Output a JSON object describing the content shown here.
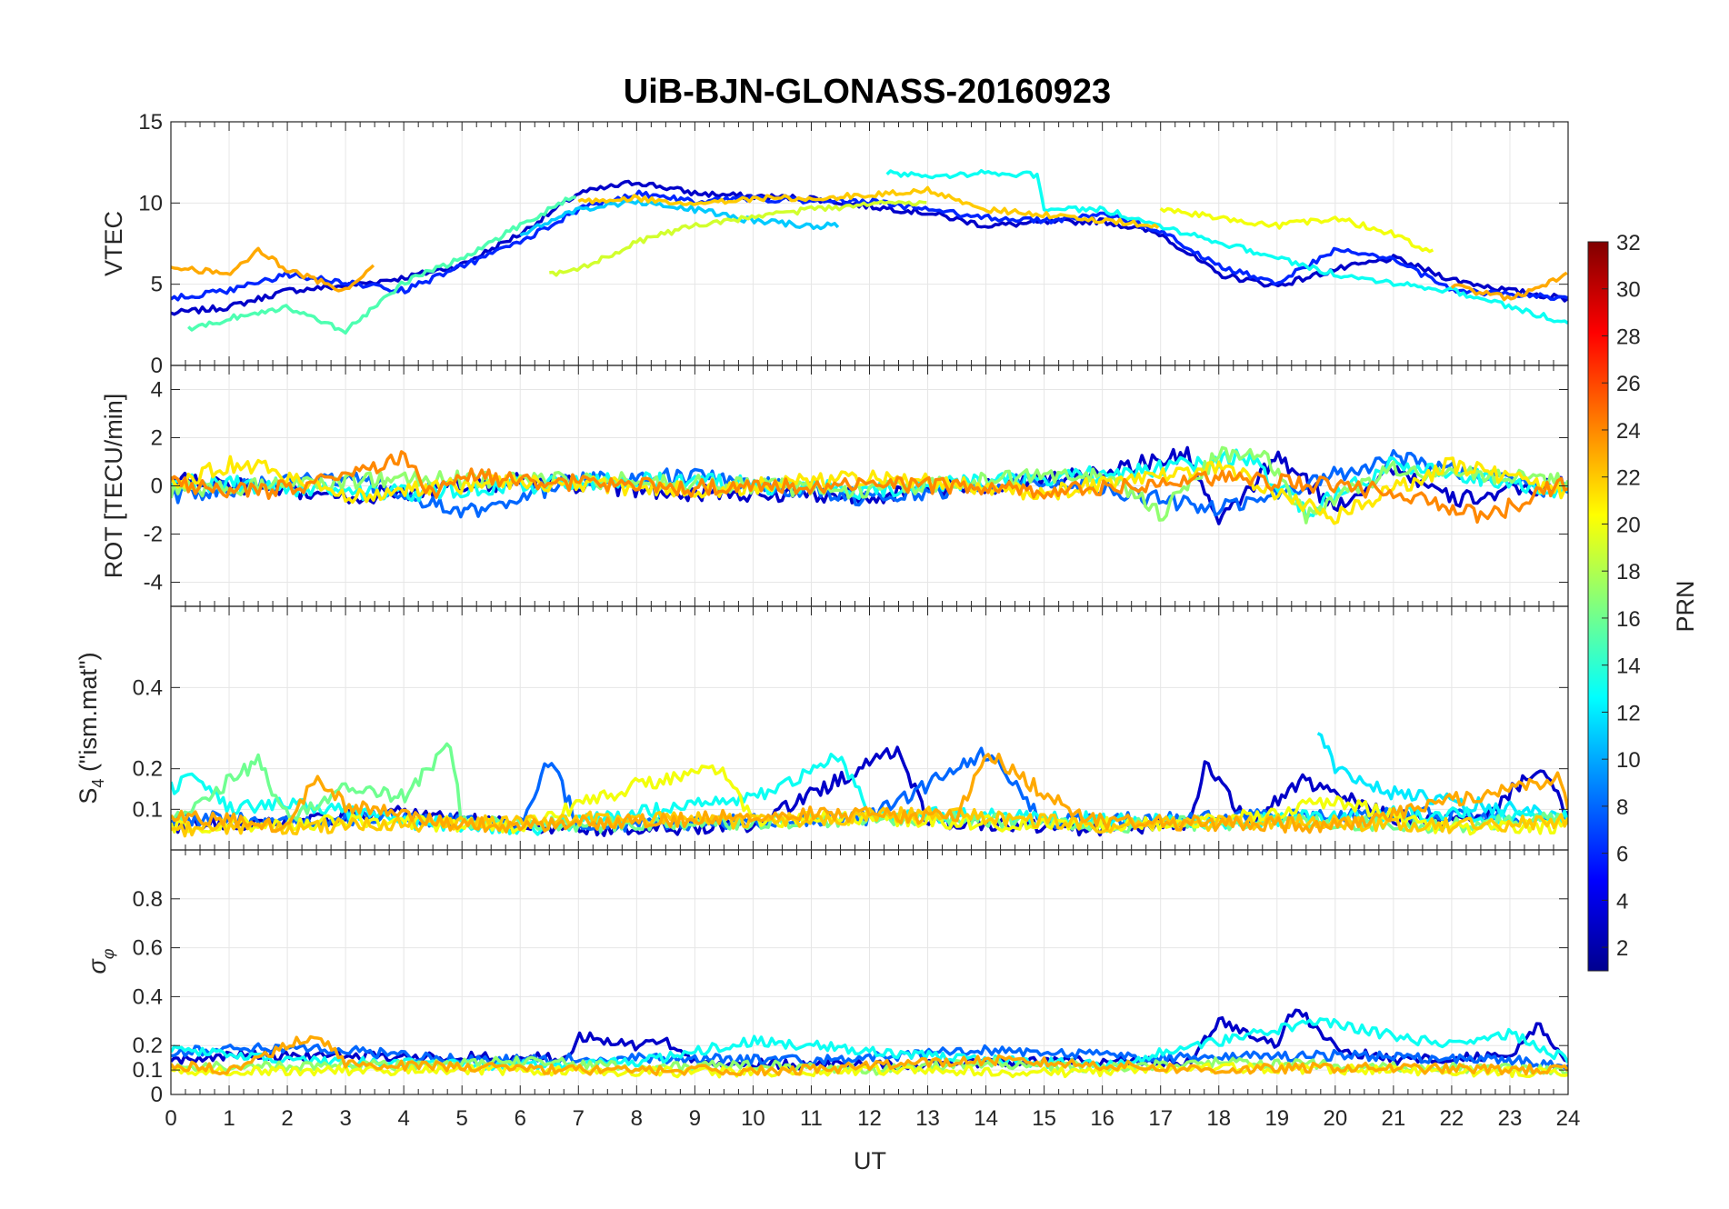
{
  "chart_data": {
    "title": "UiB-BJN-GLONASS-20160923",
    "type": "line",
    "xlabel": "UT",
    "xlim": [
      0,
      24
    ],
    "x_ticks": [
      "0",
      "1",
      "2",
      "3",
      "4",
      "5",
      "6",
      "7",
      "8",
      "9",
      "10",
      "11",
      "12",
      "13",
      "14",
      "15",
      "16",
      "17",
      "18",
      "19",
      "20",
      "21",
      "22",
      "23",
      "24"
    ],
    "grid": true,
    "colormap": {
      "name": "jet",
      "label": "PRN",
      "range": [
        1,
        32
      ],
      "tick_labels": [
        "2",
        "4",
        "6",
        "8",
        "10",
        "12",
        "14",
        "16",
        "18",
        "20",
        "22",
        "24",
        "26",
        "28",
        "30",
        "32"
      ],
      "stops": [
        "#00008f",
        "#0000ff",
        "#00ffff",
        "#ffff00",
        "#ff0000",
        "#800000"
      ]
    },
    "panels": [
      {
        "id": "vtec",
        "ylabel": "VTEC",
        "ylim": [
          0,
          15
        ],
        "y_ticks": [
          "0",
          "5",
          "10",
          "15"
        ],
        "series": [
          {
            "prn": 3,
            "t": [
              0,
              1,
              2,
              3,
              4,
              5,
              6,
              7,
              8,
              9,
              10,
              11,
              12,
              13,
              14,
              15,
              16,
              17,
              18,
              19,
              20,
              21,
              22,
              23,
              24
            ],
            "v": [
              3.2,
              3.6,
              4.6,
              4.9,
              5.4,
              6.2,
              8.1,
              10.6,
              11.3,
              10.6,
              10.4,
              10.3,
              9.8,
              9.4,
              8.6,
              8.8,
              8.9,
              8.1,
              5.6,
              4.9,
              5.9,
              6.6,
              5.3,
              4.6,
              4.1
            ]
          },
          {
            "prn": 6,
            "t": [
              0,
              1,
              2,
              3,
              4,
              5,
              6,
              7,
              8,
              9,
              10,
              11,
              12,
              13,
              14,
              15,
              16,
              17,
              18,
              19,
              20,
              21,
              22,
              23,
              24
            ],
            "v": [
              4.1,
              4.6,
              5.6,
              5.1,
              4.6,
              6.1,
              7.6,
              9.6,
              10.6,
              10.1,
              10.3,
              10.1,
              10.1,
              9.6,
              9.1,
              8.9,
              9.3,
              8.3,
              6.1,
              5.1,
              7.1,
              6.6,
              4.6,
              4.4,
              4.1
            ]
          },
          {
            "prn": 11,
            "t": [
              6,
              7,
              8,
              9,
              10,
              11,
              11.5
            ],
            "v": [
              8.1,
              9.6,
              10.1,
              9.6,
              8.9,
              8.6,
              8.6
            ]
          },
          {
            "prn": 13,
            "t": [
              12.3,
              13,
              14,
              14.9,
              15,
              16,
              17,
              18,
              19,
              20,
              21,
              22,
              23,
              24
            ],
            "v": [
              11.9,
              11.6,
              11.9,
              11.7,
              9.6,
              9.6,
              8.6,
              7.6,
              6.6,
              5.6,
              5.1,
              4.6,
              3.6,
              2.6
            ]
          },
          {
            "prn": 15,
            "t": [
              0.3,
              1,
              2,
              3,
              4,
              5,
              6,
              7
            ],
            "v": [
              2.2,
              2.9,
              3.6,
              2.1,
              5.1,
              6.6,
              8.6,
              10.6
            ]
          },
          {
            "prn": 19,
            "t": [
              6.5,
              7,
              8,
              9,
              10,
              11,
              12,
              13
            ],
            "v": [
              5.6,
              5.9,
              7.6,
              8.6,
              9.1,
              9.6,
              9.9,
              10.1
            ]
          },
          {
            "prn": 20,
            "t": [
              17,
              18,
              19,
              20,
              21,
              21.7
            ],
            "v": [
              9.6,
              9.1,
              8.6,
              9.1,
              8.1,
              6.9
            ]
          },
          {
            "prn": 22,
            "t": [
              7,
              8,
              9,
              10,
              11,
              12,
              13,
              14,
              15,
              16,
              17
            ],
            "v": [
              10.1,
              10.3,
              9.9,
              10.3,
              10.3,
              10.5,
              10.8,
              9.6,
              9.3,
              8.9,
              8.6
            ]
          },
          {
            "prn": 23,
            "t": [
              0,
              1,
              1.5,
              2,
              3,
              3.5
            ],
            "v": [
              6.1,
              5.6,
              7.1,
              5.9,
              4.6,
              6.1
            ]
          },
          {
            "prn": 23,
            "t": [
              22,
              23,
              24
            ],
            "v": [
              4.9,
              4.1,
              5.6
            ]
          }
        ]
      },
      {
        "id": "rot",
        "ylabel": "ROT [TECU/min]",
        "ylim": [
          -5,
          5
        ],
        "y_ticks": [
          "-4",
          "-2",
          "0",
          "2",
          "4"
        ],
        "series": [
          {
            "prn": 3,
            "t": [
              0,
              3,
              6,
              9,
              12,
              15,
              17.5,
              18,
              19,
              20,
              21,
              22,
              24
            ],
            "v": [
              0.3,
              -0.5,
              0.2,
              -0.3,
              -0.4,
              0.2,
              1.3,
              -1.6,
              1.2,
              -0.9,
              0.8,
              -0.6,
              0.1
            ]
          },
          {
            "prn": 8,
            "t": [
              0,
              3,
              5,
              7,
              9,
              12,
              15,
              18,
              21,
              24
            ],
            "v": [
              -0.4,
              0.4,
              -1.2,
              0.3,
              0.4,
              -0.5,
              0.3,
              -1.0,
              1.2,
              -0.3
            ]
          },
          {
            "prn": 13,
            "t": [
              0,
              4,
              8,
              12,
              16,
              18.5,
              19.5,
              21,
              24
            ],
            "v": [
              0.2,
              -0.3,
              0.3,
              -0.2,
              0.5,
              1.2,
              -1.1,
              0.9,
              -0.2
            ]
          },
          {
            "prn": 17,
            "t": [
              0,
              4,
              8,
              12,
              16,
              17,
              18,
              18.7,
              19.5,
              21,
              24
            ],
            "v": [
              -0.2,
              0.3,
              0.2,
              -0.2,
              0.6,
              -1.2,
              1.3,
              1.5,
              -1.2,
              0.7,
              0.2
            ]
          },
          {
            "prn": 21,
            "t": [
              0,
              1.2,
              3,
              6,
              9,
              12,
              15,
              18,
              20,
              22,
              24
            ],
            "v": [
              0.1,
              1.0,
              -0.4,
              0.2,
              -0.2,
              0.4,
              -0.3,
              0.8,
              -1.3,
              0.9,
              -0.3
            ]
          },
          {
            "prn": 24,
            "t": [
              0,
              1.5,
              3,
              4,
              4.5,
              5,
              6,
              9,
              12,
              15,
              18,
              21,
              22.6,
              24
            ],
            "v": [
              0.1,
              -0.3,
              0.4,
              1.1,
              -0.3,
              0.5,
              0.2,
              -0.1,
              0.1,
              -0.2,
              0.3,
              -0.2,
              -1.3,
              0.2
            ]
          }
        ]
      },
      {
        "id": "s4",
        "ylabel": "S4 (\"ism.mat\")",
        "ylim": [
          0,
          0.6
        ],
        "y_ticks": [
          "0.1",
          "0.2",
          "0.4"
        ],
        "series": [
          {
            "prn": 3,
            "t": [
              0,
              2,
              4,
              6,
              8,
              10,
              12.5,
              13,
              16,
              17.5,
              17.8,
              18.5,
              19.4,
              21,
              22.5,
              23.5,
              24
            ],
            "v": [
              0.06,
              0.07,
              0.09,
              0.06,
              0.05,
              0.06,
              0.25,
              0.07,
              0.05,
              0.07,
              0.22,
              0.06,
              0.17,
              0.08,
              0.07,
              0.21,
              0.08
            ]
          },
          {
            "prn": 8,
            "t": [
              0,
              2,
              4,
              6,
              6.5,
              7,
              10,
              12,
              14,
              15,
              18,
              21,
              24
            ],
            "v": [
              0.08,
              0.07,
              0.08,
              0.06,
              0.23,
              0.06,
              0.07,
              0.08,
              0.24,
              0.07,
              0.08,
              0.09,
              0.07
            ]
          },
          {
            "prn": 12,
            "t": [
              19.7,
              20,
              21,
              22,
              23,
              24
            ],
            "v": [
              0.3,
              0.2,
              0.14,
              0.12,
              0.1,
              0.08
            ]
          },
          {
            "prn": 13,
            "t": [
              0,
              0.4,
              1,
              2,
              4,
              6,
              10,
              11.5,
              12,
              15,
              18,
              21,
              24
            ],
            "v": [
              0.15,
              0.18,
              0.1,
              0.12,
              0.07,
              0.05,
              0.13,
              0.23,
              0.09,
              0.08,
              0.07,
              0.09,
              0.08
            ]
          },
          {
            "prn": 16,
            "t": [
              0,
              1.5,
              2,
              3,
              4,
              4.8,
              5,
              7,
              10,
              13,
              16,
              19,
              22,
              24
            ],
            "v": [
              0.07,
              0.22,
              0.08,
              0.15,
              0.13,
              0.26,
              0.07,
              0.06,
              0.07,
              0.08,
              0.06,
              0.07,
              0.06,
              0.08
            ]
          },
          {
            "prn": 20,
            "t": [
              0,
              3,
              6,
              8,
              9.5,
              10,
              12,
              15,
              18,
              20,
              22,
              24
            ],
            "v": [
              0.06,
              0.07,
              0.06,
              0.16,
              0.2,
              0.07,
              0.08,
              0.06,
              0.07,
              0.12,
              0.05,
              0.06
            ]
          },
          {
            "prn": 22,
            "t": [
              0,
              3,
              6,
              8,
              10,
              13,
              16,
              19,
              22,
              24
            ],
            "v": [
              0.05,
              0.06,
              0.07,
              0.08,
              0.07,
              0.09,
              0.06,
              0.07,
              0.06,
              0.07
            ]
          },
          {
            "prn": 23,
            "t": [
              0,
              2,
              2.5,
              3,
              5,
              8,
              11,
              13.5,
              14,
              15.5,
              16,
              20,
              23.9,
              24
            ],
            "v": [
              0.09,
              0.06,
              0.18,
              0.11,
              0.06,
              0.07,
              0.09,
              0.08,
              0.24,
              0.09,
              0.07,
              0.06,
              0.18,
              0.1
            ]
          }
        ]
      },
      {
        "id": "sigma-phi",
        "ylabel": "σφ",
        "ylim": [
          0,
          1
        ],
        "y_ticks": [
          "0",
          "0.1",
          "0.2",
          "0.4",
          "0.6",
          "0.8"
        ],
        "series": [
          {
            "prn": 3,
            "t": [
              0,
              1,
              6.8,
              7,
              8,
              8.5,
              9,
              12,
              15,
              17.5,
              18,
              19,
              19.3,
              20,
              21,
              23,
              23.5,
              24
            ],
            "v": [
              0.14,
              0.16,
              0.15,
              0.24,
              0.2,
              0.22,
              0.13,
              0.12,
              0.14,
              0.13,
              0.3,
              0.2,
              0.36,
              0.19,
              0.14,
              0.16,
              0.28,
              0.13
            ]
          },
          {
            "prn": 8,
            "t": [
              0,
              1,
              3,
              5,
              8,
              11,
              14,
              17,
              20,
              23,
              24
            ],
            "v": [
              0.17,
              0.19,
              0.18,
              0.14,
              0.15,
              0.14,
              0.18,
              0.15,
              0.16,
              0.14,
              0.12
            ]
          },
          {
            "prn": 13,
            "t": [
              0,
              2,
              5,
              8,
              10,
              11.5,
              14,
              16,
              19.7,
              21,
              22,
              23,
              24
            ],
            "v": [
              0.19,
              0.14,
              0.12,
              0.13,
              0.22,
              0.19,
              0.14,
              0.12,
              0.3,
              0.24,
              0.2,
              0.25,
              0.14
            ]
          },
          {
            "prn": 17,
            "t": [
              0,
              4,
              6,
              8,
              10,
              12,
              14,
              16,
              18,
              20,
              22,
              24
            ],
            "v": [
              0.11,
              0.12,
              0.14,
              0.11,
              0.12,
              0.1,
              0.13,
              0.11,
              0.13,
              0.12,
              0.11,
              0.1
            ]
          },
          {
            "prn": 20,
            "t": [
              0,
              3,
              6,
              9,
              12,
              15,
              18,
              21,
              24
            ],
            "v": [
              0.09,
              0.1,
              0.1,
              0.09,
              0.1,
              0.09,
              0.11,
              0.1,
              0.09
            ]
          },
          {
            "prn": 23,
            "t": [
              0,
              1,
              2.5,
              3,
              5,
              8,
              11,
              12,
              14,
              16,
              18,
              20,
              24
            ],
            "v": [
              0.12,
              0.1,
              0.25,
              0.13,
              0.11,
              0.1,
              0.1,
              0.12,
              0.14,
              0.12,
              0.1,
              0.11,
              0.1
            ]
          }
        ]
      }
    ]
  }
}
